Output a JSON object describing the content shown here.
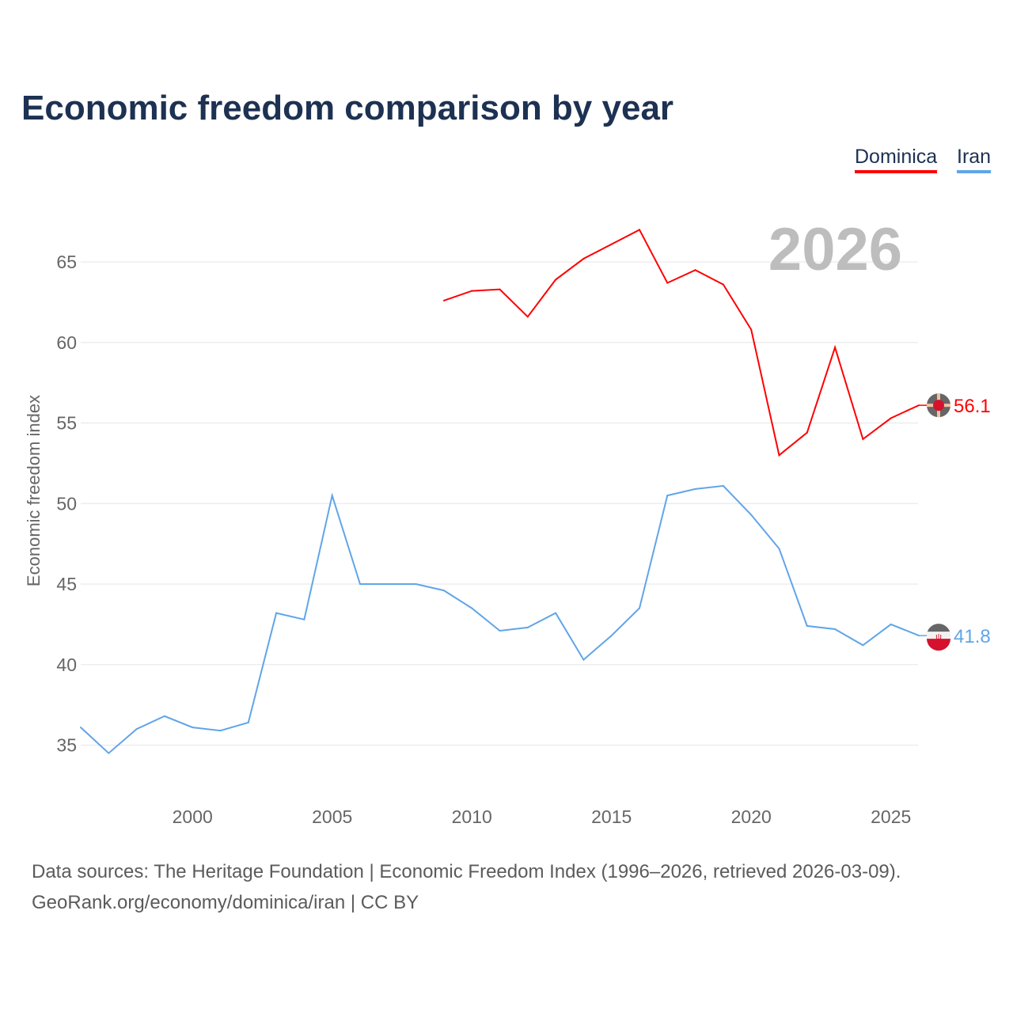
{
  "title": "Economic freedom comparison by year",
  "legend": [
    {
      "label": "Dominica",
      "color": "#ff0000"
    },
    {
      "label": "Iran",
      "color": "#60a5e8"
    }
  ],
  "footer": {
    "line1": "Data sources: The Heritage Foundation | Economic Freedom Index (1996–2026, retrieved 2026-03-09).",
    "line2": "GeoRank.org/economy/dominica/iran | CC BY"
  },
  "chart_data": {
    "type": "line",
    "title": "Economic freedom comparison by year",
    "xlabel": "",
    "ylabel": "Economic freedom index",
    "xlim": [
      1996,
      2026
    ],
    "ylim": [
      32,
      68
    ],
    "xticks": [
      2000,
      2005,
      2010,
      2015,
      2020,
      2025
    ],
    "yticks": [
      35,
      40,
      45,
      50,
      55,
      60,
      65
    ],
    "year_watermark": "2026",
    "grid": true,
    "legend_position": "top-right",
    "series": [
      {
        "name": "Dominica",
        "color": "#ff0000",
        "end_label": "56.1",
        "x": [
          2009,
          2010,
          2011,
          2012,
          2013,
          2014,
          2015,
          2016,
          2017,
          2018,
          2019,
          2020,
          2021,
          2022,
          2023,
          2024,
          2025,
          2026
        ],
        "values": [
          62.6,
          63.2,
          63.3,
          61.6,
          63.9,
          65.2,
          66.1,
          67.0,
          63.7,
          64.5,
          63.6,
          60.8,
          53.0,
          54.4,
          59.7,
          54.0,
          55.3,
          56.1
        ]
      },
      {
        "name": "Iran",
        "color": "#60a5e8",
        "end_label": "41.8",
        "x": [
          1996,
          1997,
          1998,
          1999,
          2000,
          2001,
          2002,
          2003,
          2004,
          2005,
          2006,
          2007,
          2008,
          2009,
          2010,
          2011,
          2012,
          2013,
          2014,
          2015,
          2016,
          2017,
          2018,
          2019,
          2020,
          2021,
          2022,
          2023,
          2024,
          2025,
          2026
        ],
        "values": [
          36.1,
          34.5,
          36.0,
          36.8,
          36.1,
          35.9,
          36.4,
          43.2,
          42.8,
          50.5,
          45.0,
          45.0,
          45.0,
          44.6,
          43.5,
          42.1,
          42.3,
          43.2,
          40.3,
          41.8,
          43.5,
          50.5,
          50.9,
          51.1,
          49.3,
          47.2,
          42.4,
          42.2,
          41.2,
          42.5,
          41.8
        ]
      }
    ]
  }
}
